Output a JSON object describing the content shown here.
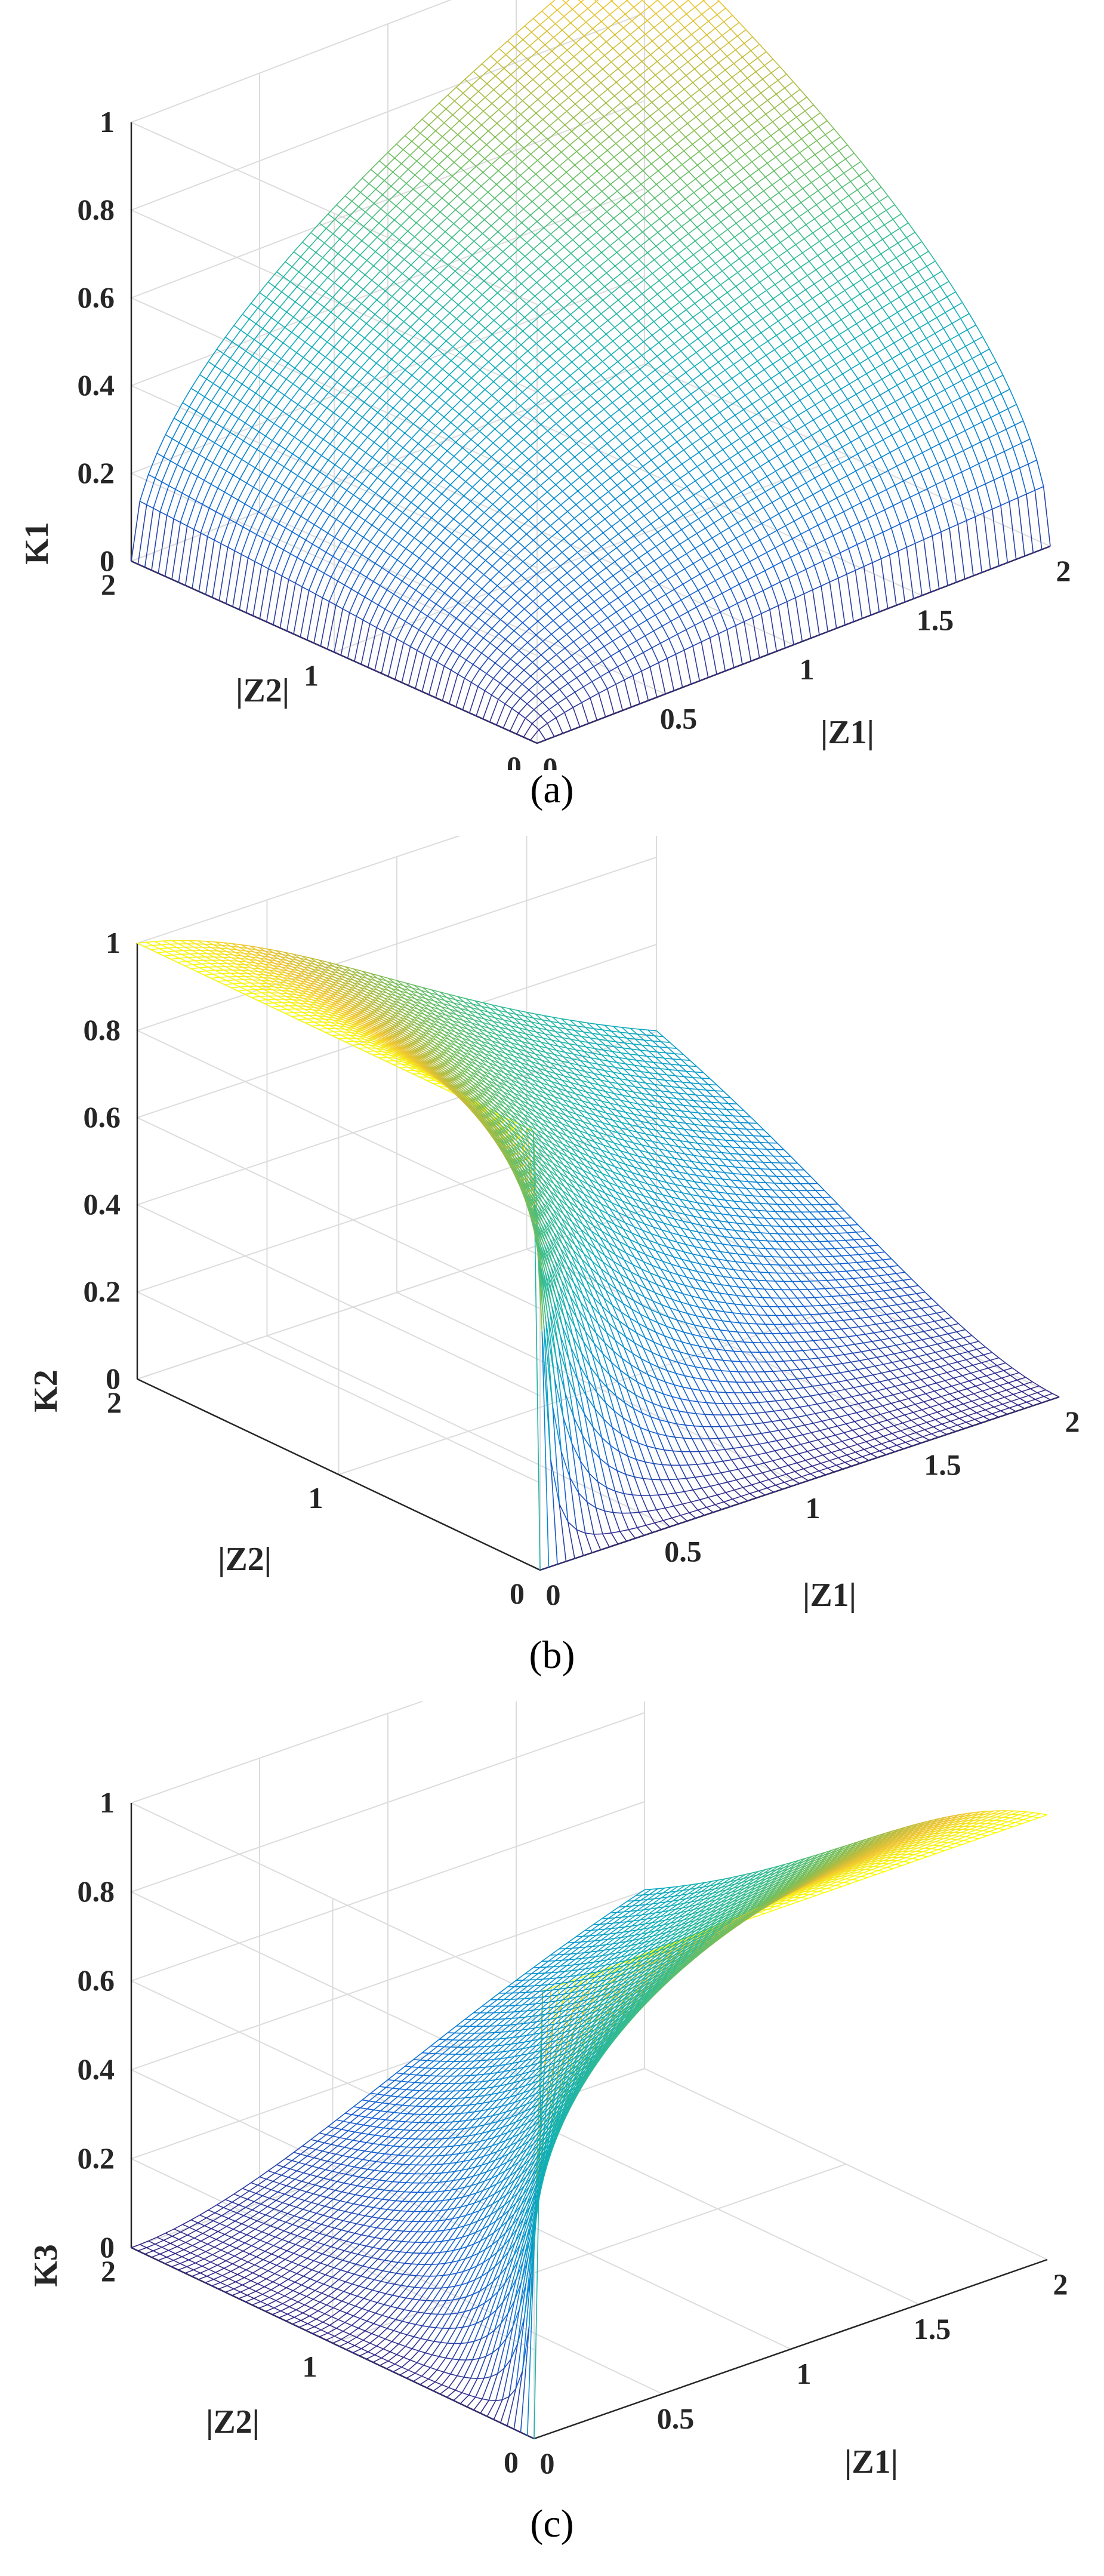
{
  "figure": {
    "panels": [
      {
        "caption": "(a)"
      },
      {
        "caption": "(b)"
      },
      {
        "caption": "(c)"
      }
    ]
  },
  "chart_data": [
    {
      "type": "surface",
      "surface": "K1",
      "grid": true,
      "colormap": "parula",
      "xlabel": "|Z1|",
      "ylabel": "|Z2|",
      "zlabel": "K1",
      "xlim": [
        0,
        2
      ],
      "ylim": [
        0,
        2
      ],
      "zlim": [
        0,
        1
      ],
      "x_ticks": [
        "0",
        "0.5",
        "1",
        "1.5",
        "2"
      ],
      "y_ticks": [
        "0",
        "1",
        "2"
      ],
      "z_ticks": [
        "0",
        "0.2",
        "0.4",
        "0.6",
        "0.8",
        "1"
      ],
      "corner_values": [
        {
          "x": 0,
          "y": 0,
          "z": 0
        },
        {
          "x": 2,
          "y": 0,
          "z": 0
        },
        {
          "x": 0,
          "y": 2,
          "z": 0
        },
        {
          "x": 2,
          "y": 2,
          "z": 1
        }
      ]
    },
    {
      "type": "surface",
      "surface": "K2",
      "grid": true,
      "colormap": "parula",
      "xlabel": "|Z1|",
      "ylabel": "|Z2|",
      "zlabel": "K2",
      "xlim": [
        0,
        2
      ],
      "ylim": [
        0,
        2
      ],
      "zlim": [
        0,
        1
      ],
      "x_ticks": [
        "0",
        "0.5",
        "1",
        "1.5",
        "2"
      ],
      "y_ticks": [
        "0",
        "1",
        "2"
      ],
      "z_ticks": [
        "0",
        "0.2",
        "0.4",
        "0.6",
        "0.8",
        "1"
      ],
      "corner_values": [
        {
          "x": 0,
          "y": 0,
          "z": 0
        },
        {
          "x": 2,
          "y": 0,
          "z": 0
        },
        {
          "x": 0,
          "y": 2,
          "z": 1
        },
        {
          "x": 2,
          "y": 2,
          "z": 0.5
        }
      ]
    },
    {
      "type": "surface",
      "surface": "K3",
      "grid": true,
      "colormap": "parula",
      "xlabel": "|Z1|",
      "ylabel": "|Z2|",
      "zlabel": "K3",
      "xlim": [
        0,
        2
      ],
      "ylim": [
        0,
        2
      ],
      "zlim": [
        0,
        1
      ],
      "x_ticks": [
        "0",
        "0.5",
        "1",
        "1.5",
        "2"
      ],
      "y_ticks": [
        "0",
        "1",
        "2"
      ],
      "z_ticks": [
        "0",
        "0.2",
        "0.4",
        "0.6",
        "0.8",
        "1"
      ],
      "corner_values": [
        {
          "x": 0,
          "y": 0,
          "z": 0
        },
        {
          "x": 2,
          "y": 0,
          "z": 1
        },
        {
          "x": 0,
          "y": 2,
          "z": 0
        },
        {
          "x": 2,
          "y": 2,
          "z": 0.5
        }
      ]
    }
  ]
}
